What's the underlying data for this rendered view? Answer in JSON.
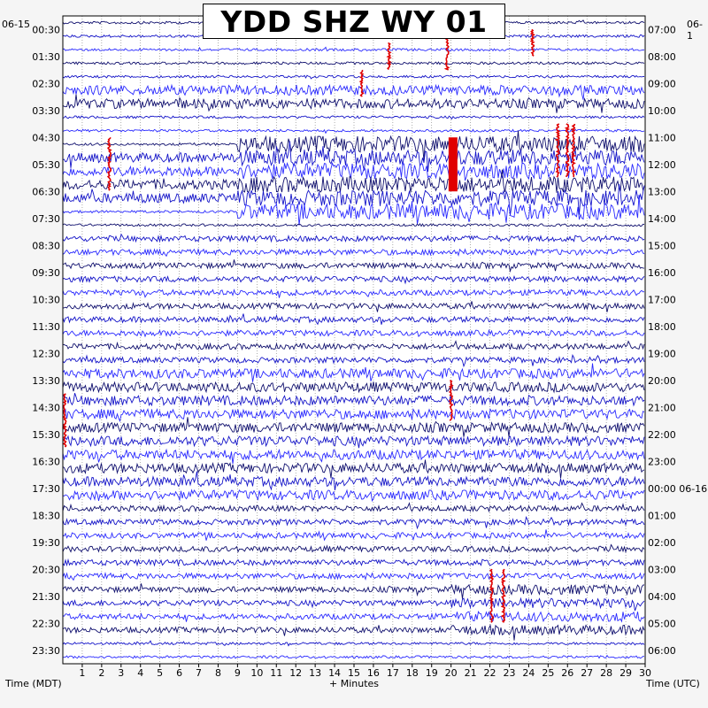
{
  "title": "YDD SHZ WY 01",
  "start_date_left": "06-15",
  "start_date_right": "06-1",
  "left_axis_label": "Time (MDT)",
  "center_axis_label": "+ Minutes",
  "right_axis_label": "Time (UTC)",
  "colors": {
    "trace_dark": "#10106e",
    "trace_med": "#1414c8",
    "trace_light": "#2a2aff",
    "event": "#e00000",
    "background": "#ffffff",
    "page": "#f5f5f5"
  },
  "chart_data": {
    "type": "helicorder",
    "title": "YDD SHZ WY 01",
    "xlabel": "+ Minutes",
    "ylabel_left": "Time (MDT)",
    "ylabel_right": "Time (UTC)",
    "x_ticks": [
      "1",
      "2",
      "3",
      "4",
      "5",
      "6",
      "7",
      "8",
      "9",
      "10",
      "11",
      "12",
      "13",
      "14",
      "15",
      "16",
      "17",
      "18",
      "19",
      "20",
      "21",
      "22",
      "23",
      "24",
      "25",
      "26",
      "27",
      "28",
      "29",
      "30"
    ],
    "xlim": [
      0,
      30
    ],
    "left_ticks": [
      "00:30",
      "01:30",
      "02:30",
      "03:30",
      "04:30",
      "05:30",
      "06:30",
      "07:30",
      "08:30",
      "09:30",
      "10:30",
      "11:30",
      "12:30",
      "13:30",
      "14:30",
      "15:30",
      "16:30",
      "17:30",
      "18:30",
      "19:30",
      "20:30",
      "21:30",
      "22:30",
      "23:30"
    ],
    "right_ticks": [
      "07:00",
      "08:00",
      "09:00",
      "10:00",
      "11:00",
      "12:00",
      "13:00",
      "14:00",
      "15:00",
      "16:00",
      "17:00",
      "18:00",
      "19:00",
      "20:00",
      "21:00",
      "22:00",
      "23:00",
      "00:00 06-16",
      "01:00",
      "02:00",
      "03:00",
      "04:00",
      "05:00",
      "06:00"
    ],
    "rows_per_hour": 2,
    "trace_colors_cycle": [
      "dark",
      "med",
      "light"
    ],
    "grid": true,
    "activity_regions": [
      {
        "row_start": 5,
        "row_end": 7,
        "minute_start": 0,
        "minute_end": 30,
        "level": 3
      },
      {
        "row_start": 9,
        "row_end": 15,
        "minute_start": 9,
        "minute_end": 30,
        "level": 4
      },
      {
        "row_start": 10,
        "row_end": 14,
        "minute_start": 0,
        "minute_end": 9,
        "level": 3
      },
      {
        "row_start": 16,
        "row_end": 46,
        "minute_start": 0,
        "minute_end": 30,
        "level": 2
      },
      {
        "row_start": 26,
        "row_end": 36,
        "minute_start": 0,
        "minute_end": 30,
        "level": 3
      },
      {
        "row_start": 42,
        "row_end": 46,
        "minute_start": 20,
        "minute_end": 30,
        "level": 3
      }
    ],
    "red_events": [
      {
        "row": 9,
        "minute": 2.4,
        "rows_span": 4
      },
      {
        "row": 2,
        "minute": 16.8,
        "rows_span": 2
      },
      {
        "row": 1,
        "minute": 19.8,
        "rows_span": 3
      },
      {
        "row": 1,
        "minute": 24.2,
        "rows_span": 2
      },
      {
        "row": 4,
        "minute": 15.4,
        "rows_span": 2
      },
      {
        "row": 9,
        "minute": 20.1,
        "rows_span": 4,
        "wide": true
      },
      {
        "row": 8,
        "minute": 25.5,
        "rows_span": 4
      },
      {
        "row": 8,
        "minute": 26.0,
        "rows_span": 4
      },
      {
        "row": 8,
        "minute": 26.3,
        "rows_span": 4
      },
      {
        "row": 27,
        "minute": 20.0,
        "rows_span": 3
      },
      {
        "row": 28,
        "minute": 0.1,
        "rows_span": 4
      },
      {
        "row": 41,
        "minute": 22.1,
        "rows_span": 4
      },
      {
        "row": 41,
        "minute": 22.7,
        "rows_span": 4
      }
    ]
  }
}
